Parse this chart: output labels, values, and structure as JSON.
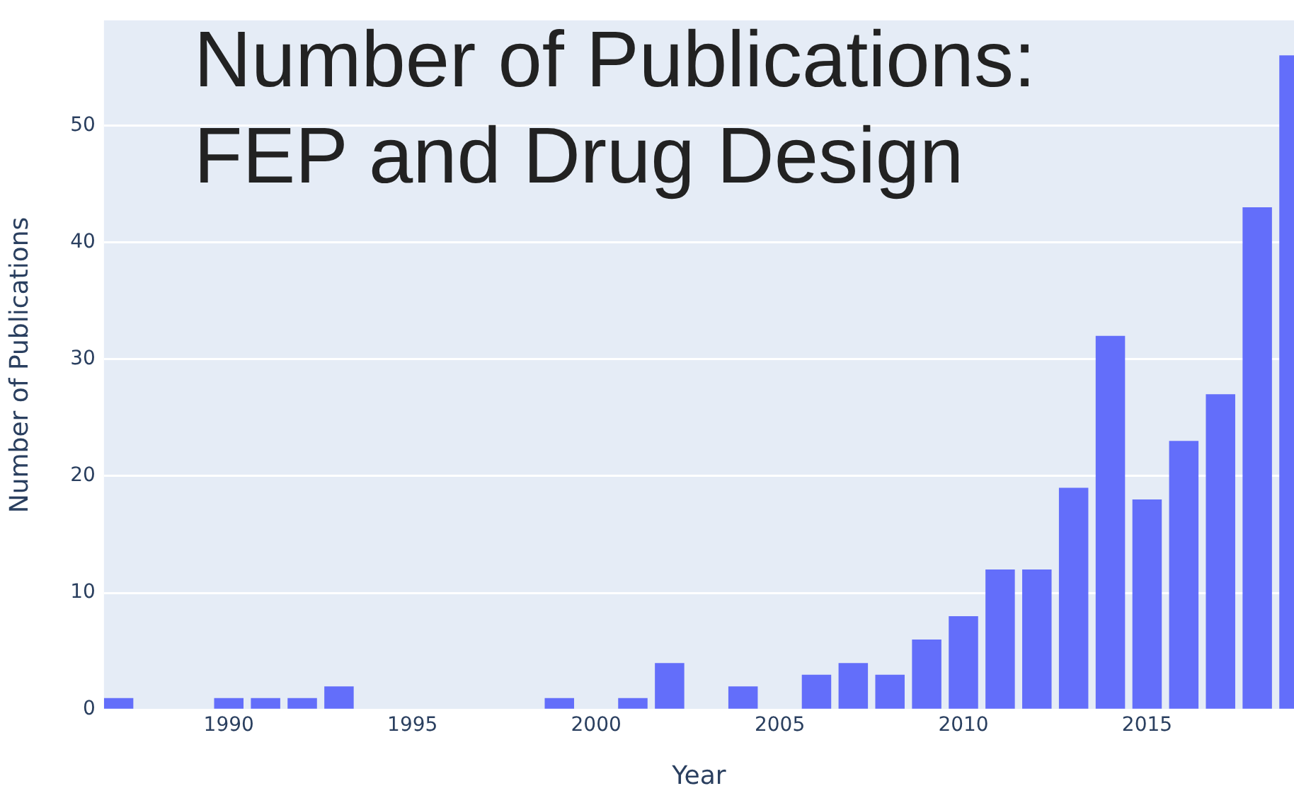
{
  "chart_data": {
    "type": "bar",
    "title": "Number of Publications: FEP and Drug Design",
    "xlabel": "Year",
    "ylabel": "Number of Publications",
    "x": [
      1987,
      1990,
      1991,
      1992,
      1993,
      1999,
      2001,
      2002,
      2004,
      2006,
      2007,
      2008,
      2009,
      2010,
      2011,
      2012,
      2013,
      2014,
      2015,
      2016,
      2017,
      2018,
      2019
    ],
    "values": [
      1,
      1,
      1,
      1,
      2,
      1,
      1,
      4,
      2,
      3,
      4,
      3,
      6,
      8,
      12,
      12,
      19,
      32,
      18,
      23,
      27,
      43,
      56
    ],
    "color": "#636efa",
    "xlim": [
      1986.6,
      2019
    ],
    "xticks": [
      1990,
      1995,
      2000,
      2005,
      2010,
      2015
    ],
    "ylim": [
      0,
      59
    ],
    "yticks": [
      0,
      10,
      20,
      30,
      40,
      50
    ],
    "grid": "y"
  }
}
